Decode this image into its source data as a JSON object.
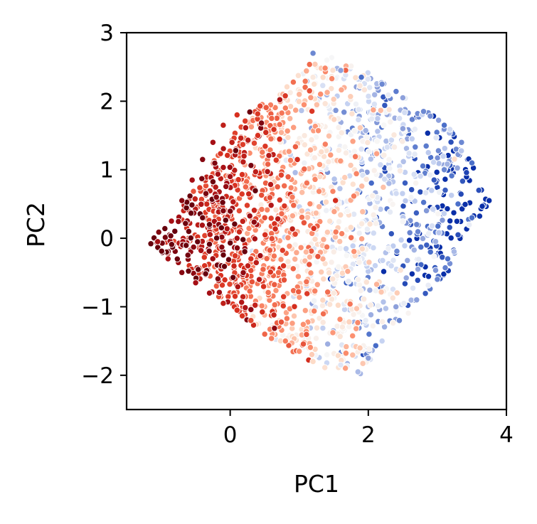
{
  "chart_data": {
    "type": "scatter",
    "title": "",
    "xlabel": "PC1",
    "ylabel": "PC2",
    "xlim": [
      -1.5,
      4
    ],
    "ylim": [
      -2.5,
      3
    ],
    "xticks": [
      {
        "value": 0,
        "label": "0"
      },
      {
        "value": 2,
        "label": "2"
      },
      {
        "value": 4,
        "label": "4"
      }
    ],
    "yticks": [
      {
        "value": 3,
        "label": "3"
      },
      {
        "value": 2,
        "label": "2"
      },
      {
        "value": 1,
        "label": "1"
      },
      {
        "value": 0,
        "label": "0"
      },
      {
        "value": -1,
        "label": "−1"
      },
      {
        "value": -2,
        "label": "−2"
      }
    ],
    "grid": false,
    "legend": "none",
    "colormap": [
      "#67000d",
      "#a50f15",
      "#d7301f",
      "#ef6548",
      "#fc9272",
      "#fddbc7",
      "#f7f7f7",
      "#c6d3f2",
      "#8da0db",
      "#4b6fc9",
      "#0a2fa8"
    ],
    "color_encoding": "continuous value mapped from dark red (low) through white to dark blue (high); increases with PC1",
    "point_edge_color": "#ffffff",
    "cluster_outline": [
      [
        -1.2,
        -0.1
      ],
      [
        -0.6,
        0.6
      ],
      [
        0.3,
        1.9
      ],
      [
        0.6,
        2.0
      ],
      [
        1.0,
        2.4
      ],
      [
        1.3,
        2.7
      ],
      [
        1.7,
        2.6
      ],
      [
        2.2,
        2.3
      ],
      [
        2.6,
        2.0
      ],
      [
        3.1,
        1.7
      ],
      [
        3.5,
        1.2
      ],
      [
        3.75,
        0.5
      ],
      [
        3.4,
        0.0
      ],
      [
        3.0,
        -0.8
      ],
      [
        2.3,
        -1.3
      ],
      [
        1.9,
        -2.0
      ],
      [
        1.3,
        -1.9
      ],
      [
        0.8,
        -1.6
      ],
      [
        0.2,
        -1.2
      ],
      [
        -0.6,
        -0.5
      ]
    ],
    "points": [
      [
        -1.05,
        -0.05,
        0.1
      ],
      [
        -0.85,
        0.25,
        0.1
      ],
      [
        -0.7,
        0.55,
        0.05
      ],
      [
        -0.55,
        0.85,
        0.1
      ],
      [
        -0.4,
        1.15,
        0.05
      ],
      [
        -0.25,
        1.4,
        0.1
      ],
      [
        -0.1,
        1.65,
        0.15
      ],
      [
        0.1,
        1.8,
        0.2
      ],
      [
        -0.9,
        -0.3,
        0.1
      ],
      [
        -0.7,
        -0.5,
        0.05
      ],
      [
        -0.5,
        -0.65,
        0.1
      ],
      [
        -0.3,
        -0.8,
        0.1
      ],
      [
        -0.1,
        -0.95,
        0.15
      ],
      [
        0.1,
        -1.05,
        0.2
      ],
      [
        0.3,
        -1.2,
        0.25
      ],
      [
        0.5,
        -1.4,
        0.3
      ],
      [
        -0.6,
        0.1,
        0.0
      ],
      [
        -0.4,
        0.3,
        0.0
      ],
      [
        -0.2,
        0.6,
        0.05
      ],
      [
        0.0,
        0.9,
        0.1
      ],
      [
        0.2,
        1.2,
        0.15
      ],
      [
        0.4,
        1.5,
        0.2
      ],
      [
        0.6,
        1.75,
        0.3
      ],
      [
        0.8,
        1.9,
        0.35
      ],
      [
        1.0,
        2.1,
        0.45
      ],
      [
        1.2,
        2.35,
        0.55
      ],
      [
        1.4,
        2.6,
        0.6
      ],
      [
        1.2,
        2.7,
        0.85
      ],
      [
        1.6,
        2.45,
        0.8
      ],
      [
        1.9,
        2.35,
        0.9
      ],
      [
        2.2,
        2.25,
        0.85
      ],
      [
        2.5,
        2.05,
        0.8
      ],
      [
        2.8,
        1.85,
        0.85
      ],
      [
        3.1,
        1.65,
        0.9
      ],
      [
        3.35,
        1.4,
        0.85
      ],
      [
        3.5,
        1.1,
        0.9
      ],
      [
        3.6,
        0.7,
        0.95
      ],
      [
        3.75,
        0.55,
        1.0
      ],
      [
        3.5,
        0.3,
        0.9
      ],
      [
        3.3,
        0.05,
        0.95
      ],
      [
        3.15,
        -0.3,
        0.9
      ],
      [
        3.0,
        -0.6,
        0.85
      ],
      [
        2.7,
        -0.9,
        0.8
      ],
      [
        2.45,
        -1.2,
        0.85
      ],
      [
        2.2,
        -1.5,
        0.7
      ],
      [
        2.0,
        -1.75,
        0.8
      ],
      [
        1.85,
        -1.95,
        0.75
      ],
      [
        1.6,
        -1.85,
        0.65
      ],
      [
        1.4,
        -1.7,
        0.6
      ],
      [
        1.2,
        -1.8,
        0.5
      ],
      [
        1.0,
        -1.65,
        0.4
      ],
      [
        0.8,
        -1.5,
        0.35
      ],
      [
        -0.3,
        0.2,
        0.0
      ],
      [
        -0.1,
        0.4,
        0.05
      ],
      [
        0.1,
        0.0,
        0.1
      ],
      [
        0.3,
        -0.3,
        0.2
      ],
      [
        0.5,
        0.3,
        0.25
      ],
      [
        0.7,
        -0.5,
        0.3
      ],
      [
        0.9,
        0.6,
        0.35
      ],
      [
        1.1,
        -0.2,
        0.45
      ],
      [
        1.3,
        0.9,
        0.5
      ],
      [
        1.5,
        -0.8,
        0.55
      ],
      [
        1.7,
        0.4,
        0.6
      ],
      [
        1.9,
        1.3,
        0.65
      ],
      [
        2.1,
        -0.4,
        0.7
      ],
      [
        2.3,
        0.8,
        0.75
      ],
      [
        2.5,
        1.6,
        0.8
      ],
      [
        2.7,
        0.2,
        0.85
      ],
      [
        2.9,
        -0.2,
        0.9
      ],
      [
        3.1,
        1.0,
        0.85
      ],
      [
        3.3,
        0.5,
        0.9
      ],
      [
        2.4,
        -1.0,
        0.8
      ]
    ]
  }
}
